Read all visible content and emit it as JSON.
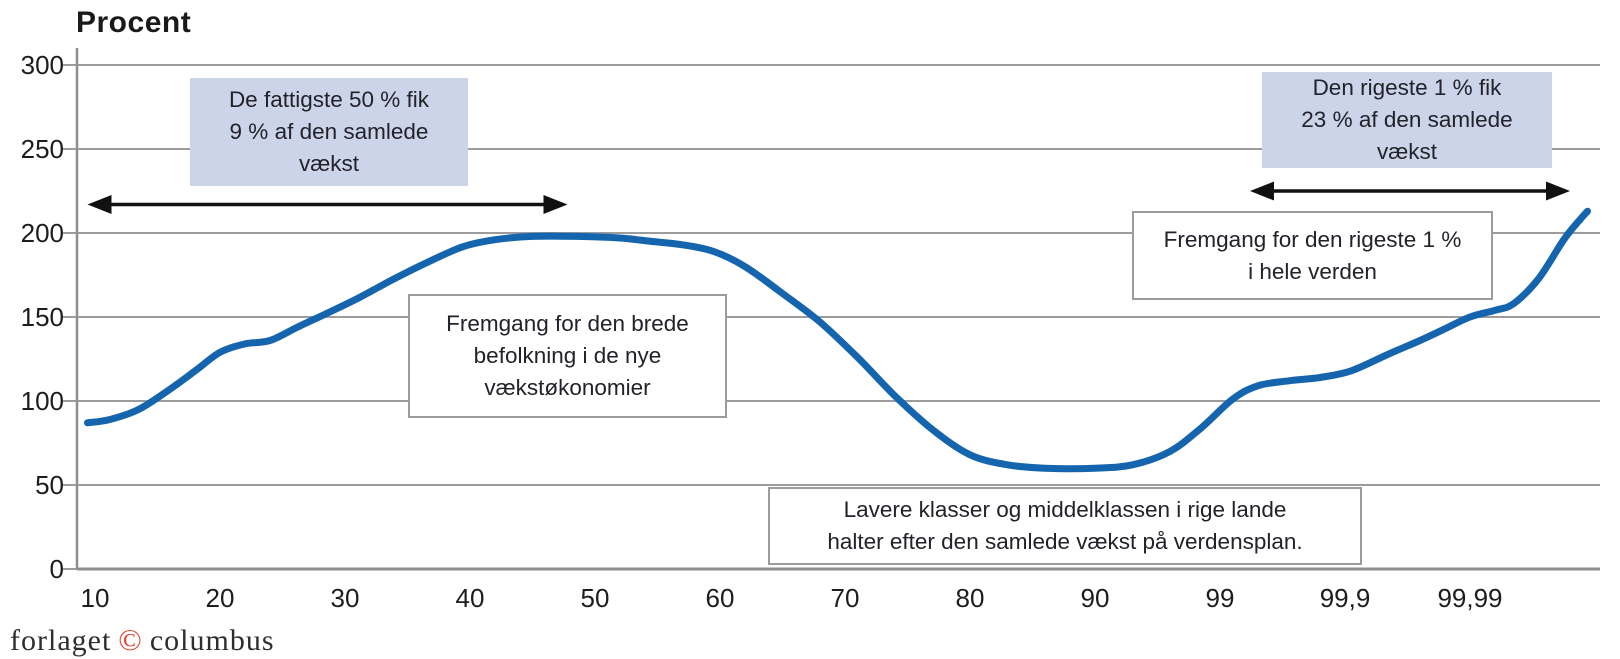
{
  "chart_data": {
    "type": "line",
    "title": "Procent",
    "ylabel": "Procent",
    "ylim": [
      0,
      300
    ],
    "y_ticks": [
      300,
      250,
      200,
      150,
      100,
      50,
      0
    ],
    "x_tick_labels": [
      "10",
      "20",
      "30",
      "40",
      "50",
      "60",
      "70",
      "80",
      "90",
      "99",
      "99,9",
      "99,99"
    ],
    "grid": true,
    "series": [
      {
        "name": "growth-curve",
        "color": "#1565ae",
        "points_as_tick_index_and_percent": [
          [
            -0.06,
            87
          ],
          [
            0.12,
            89
          ],
          [
            0.35,
            95
          ],
          [
            0.6,
            107
          ],
          [
            0.82,
            119
          ],
          [
            1.0,
            129
          ],
          [
            1.2,
            134
          ],
          [
            1.4,
            136
          ],
          [
            1.62,
            144
          ],
          [
            1.85,
            152
          ],
          [
            2.1,
            161
          ],
          [
            2.4,
            173
          ],
          [
            2.7,
            184
          ],
          [
            2.95,
            192
          ],
          [
            3.2,
            196
          ],
          [
            3.5,
            198
          ],
          [
            3.85,
            198
          ],
          [
            4.2,
            197
          ],
          [
            4.45,
            195
          ],
          [
            4.7,
            193
          ],
          [
            4.95,
            189
          ],
          [
            5.2,
            180
          ],
          [
            5.5,
            164
          ],
          [
            5.8,
            147
          ],
          [
            6.1,
            126
          ],
          [
            6.4,
            103
          ],
          [
            6.7,
            83
          ],
          [
            7.0,
            68
          ],
          [
            7.3,
            62
          ],
          [
            7.6,
            60
          ],
          [
            8.0,
            60
          ],
          [
            8.3,
            62
          ],
          [
            8.6,
            70
          ],
          [
            8.85,
            84
          ],
          [
            9.1,
            101
          ],
          [
            9.3,
            109
          ],
          [
            9.55,
            112
          ],
          [
            9.8,
            114
          ],
          [
            10.05,
            118
          ],
          [
            10.35,
            128
          ],
          [
            10.6,
            136
          ],
          [
            10.8,
            143
          ],
          [
            11.0,
            150
          ],
          [
            11.2,
            154
          ],
          [
            11.35,
            158
          ],
          [
            11.55,
            173
          ],
          [
            11.75,
            196
          ],
          [
            11.88,
            208
          ],
          [
            11.94,
            213
          ]
        ]
      }
    ],
    "arrows": [
      {
        "name": "poorest-50-range",
        "value_y": 217,
        "from_index": -0.06,
        "to_index": 3.78
      },
      {
        "name": "richest-1-range",
        "value_y": 225,
        "from_index": 9.24,
        "to_index": 11.8
      }
    ]
  },
  "annotations": {
    "poorest50": "De fattigste 50 % fik\n9 % af den samlede\nvækst",
    "richest1": "Den rigeste 1 % fik\n23 % af den samlede\nvækst",
    "emerging": "Fremgang for den brede\nbefolkning i de nye\nvækstøkonomier",
    "top1world": "Fremgang for den rigeste 1 %\ni hele verden",
    "middleclass": "Lavere klasser og middelklassen i rige lande\nhalter efter den samlede vækst på verdensplan."
  },
  "footer": {
    "publisher_left": "forlaget",
    "copyright_symbol": "©",
    "publisher_right": "columbus"
  },
  "colors": {
    "curve": "#1565ae",
    "grid": "#9c9c9c",
    "axis": "#8f8f8f",
    "annotation_blue": "#ccd4ea",
    "annotation_border": "#9c9c9c",
    "arrow": "#111111",
    "copyright_red": "#e0452e"
  }
}
